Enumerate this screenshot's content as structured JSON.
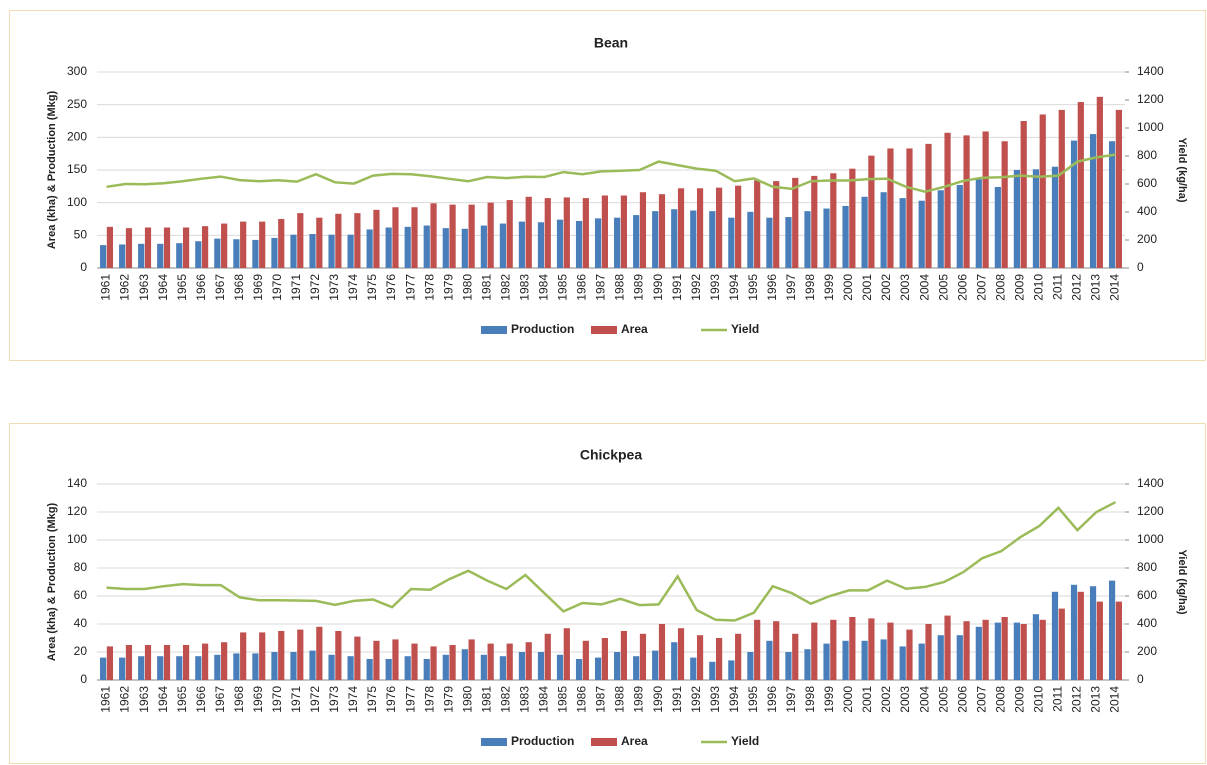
{
  "chart_data": [
    {
      "type": "combo",
      "title": "Bean",
      "ylabel": "Area (kha) & Production (Mkg)",
      "y2label": "Yield (kg/ha)",
      "categories": [
        "1961",
        "1962",
        "1963",
        "1964",
        "1965",
        "1966",
        "1967",
        "1968",
        "1969",
        "1970",
        "1971",
        "1972",
        "1973",
        "1974",
        "1975",
        "1976",
        "1977",
        "1978",
        "1979",
        "1980",
        "1981",
        "1982",
        "1983",
        "1984",
        "1985",
        "1986",
        "1987",
        "1988",
        "1989",
        "1990",
        "1991",
        "1992",
        "1993",
        "1994",
        "1995",
        "1996",
        "1997",
        "1998",
        "1999",
        "2000",
        "2001",
        "2002",
        "2003",
        "2004",
        "2005",
        "2006",
        "2007",
        "2008",
        "2009",
        "2010",
        "2011",
        "2012",
        "2013",
        "2014"
      ],
      "series": [
        {
          "name": "Production",
          "type": "bar",
          "color": "#4a7ebb",
          "values": [
            35,
            36,
            37,
            37,
            38,
            41,
            45,
            44,
            43,
            46,
            51,
            52,
            51,
            51,
            59,
            62,
            63,
            65,
            61,
            60,
            65,
            68,
            71,
            70,
            74,
            72,
            76,
            77,
            81,
            87,
            90,
            88,
            87,
            77,
            86,
            77,
            78,
            87,
            91,
            95,
            109,
            116,
            107,
            103,
            119,
            127,
            136,
            124,
            150,
            151,
            155,
            195,
            205,
            194
          ]
        },
        {
          "name": "Area",
          "type": "bar",
          "color": "#c0504d",
          "values": [
            63,
            61,
            62,
            62,
            62,
            64,
            68,
            71,
            71,
            75,
            84,
            77,
            83,
            84,
            89,
            93,
            93,
            99,
            97,
            97,
            100,
            104,
            109,
            107,
            108,
            107,
            111,
            111,
            116,
            113,
            122,
            122,
            123,
            126,
            134,
            133,
            138,
            141,
            145,
            152,
            172,
            183,
            183,
            190,
            207,
            203,
            209,
            194,
            225,
            235,
            242,
            254,
            262,
            242
          ]
        },
        {
          "name": "Yield",
          "type": "line",
          "axis": "y2",
          "color": "#9bbb59",
          "values": [
            580,
            600,
            598,
            605,
            620,
            638,
            653,
            628,
            620,
            627,
            617,
            670,
            612,
            603,
            660,
            672,
            670,
            655,
            637,
            620,
            650,
            642,
            652,
            650,
            685,
            670,
            690,
            695,
            700,
            760,
            735,
            710,
            695,
            620,
            640,
            580,
            565,
            620,
            625,
            625,
            635,
            638,
            580,
            545,
            580,
            622,
            645,
            648,
            660,
            652,
            660,
            760,
            790,
            810
          ]
        }
      ],
      "ylim": [
        0,
        300
      ],
      "yticks": [
        0,
        50,
        100,
        150,
        200,
        250,
        300
      ],
      "y2lim": [
        0,
        1400
      ],
      "y2ticks": [
        0,
        200,
        400,
        600,
        800,
        1000,
        1200,
        1400
      ],
      "grid": true,
      "legend": "bottom"
    },
    {
      "type": "combo",
      "title": "Chickpea",
      "ylabel": "Area (kha) & Production (Mkg)",
      "y2label": "Yield (kg/ha)",
      "categories": [
        "1961",
        "1962",
        "1963",
        "1964",
        "1965",
        "1966",
        "1967",
        "1968",
        "1969",
        "1970",
        "1971",
        "1972",
        "1973",
        "1974",
        "1975",
        "1976",
        "1977",
        "1978",
        "1979",
        "1980",
        "1981",
        "1982",
        "1983",
        "1984",
        "1985",
        "1986",
        "1987",
        "1988",
        "1989",
        "1990",
        "1991",
        "1992",
        "1993",
        "1994",
        "1995",
        "1996",
        "1997",
        "1998",
        "1999",
        "2000",
        "2001",
        "2002",
        "2003",
        "2004",
        "2005",
        "2006",
        "2007",
        "2008",
        "2009",
        "2010",
        "2011",
        "2012",
        "2013",
        "2014"
      ],
      "series": [
        {
          "name": "Production",
          "type": "bar",
          "color": "#4a7ebb",
          "values": [
            16,
            16,
            17,
            17,
            17,
            17,
            18,
            19,
            19,
            20,
            20,
            21,
            18,
            17,
            15,
            15,
            17,
            15,
            18,
            22,
            18,
            17,
            20,
            20,
            18,
            15,
            16,
            20,
            17,
            21,
            27,
            16,
            13,
            14,
            20,
            28,
            20,
            22,
            26,
            28,
            28,
            29,
            24,
            26,
            32,
            32,
            38,
            41,
            41,
            47,
            63,
            68,
            67,
            71
          ]
        },
        {
          "name": "Area",
          "type": "bar",
          "color": "#c0504d",
          "values": [
            24,
            25,
            25,
            25,
            25,
            26,
            27,
            34,
            34,
            35,
            36,
            38,
            35,
            31,
            28,
            29,
            26,
            24,
            25,
            29,
            26,
            26,
            27,
            33,
            37,
            28,
            30,
            35,
            33,
            40,
            37,
            32,
            30,
            33,
            43,
            42,
            33,
            41,
            43,
            45,
            44,
            41,
            36,
            40,
            46,
            42,
            43,
            45,
            40,
            43,
            51,
            63,
            56,
            56
          ]
        },
        {
          "name": "Yield",
          "type": "line",
          "axis": "y2",
          "color": "#9bbb59",
          "values": [
            660,
            650,
            650,
            670,
            685,
            678,
            678,
            590,
            570,
            570,
            568,
            565,
            537,
            565,
            575,
            520,
            650,
            645,
            720,
            780,
            710,
            650,
            750,
            620,
            490,
            550,
            540,
            580,
            535,
            540,
            740,
            500,
            430,
            425,
            480,
            670,
            620,
            545,
            600,
            640,
            640,
            710,
            652,
            665,
            700,
            770,
            870,
            920,
            1020,
            1100,
            1230,
            1070,
            1200,
            1270
          ]
        }
      ],
      "ylim": [
        0,
        140
      ],
      "yticks": [
        0,
        20,
        40,
        60,
        80,
        100,
        120,
        140
      ],
      "y2lim": [
        0,
        1400
      ],
      "y2ticks": [
        0,
        200,
        400,
        600,
        800,
        1000,
        1200,
        1400
      ],
      "grid": true,
      "legend": "bottom"
    }
  ]
}
